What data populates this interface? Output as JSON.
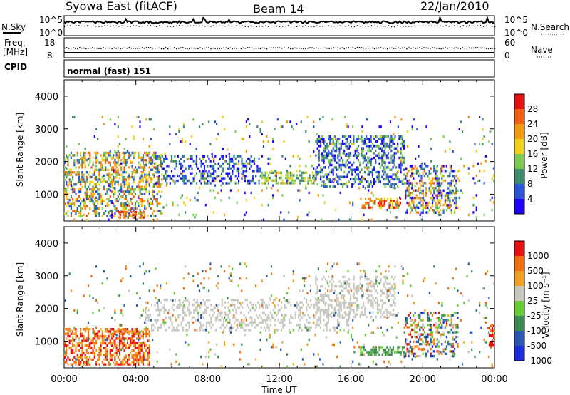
{
  "header": {
    "station": "Syowa East (fitACF)",
    "beam": "Beam 14",
    "date": "22/Jan/2010"
  },
  "status_panels": {
    "nsky_label": "N.Sky",
    "nsky_ticks": [
      "10^5",
      "10^0"
    ],
    "nsearch_label": "N.Search",
    "nsearch_ticks": [
      "10^5",
      "10^0"
    ],
    "freq_label_1": "Freq.",
    "freq_label_2": "[MHz]",
    "freq_ticks": [
      "18",
      "8"
    ],
    "nave_label": "Nave",
    "nave_ticks": [
      "60",
      "0"
    ],
    "cpid_label": "CPID",
    "mode_text": "normal (fast) 151"
  },
  "chart_data": [
    {
      "type": "heatmap",
      "name": "power",
      "ylabel": "Slant Range [km]",
      "yticks": [
        "4000",
        "3000",
        "2000",
        "1000"
      ],
      "ylim": [
        180,
        4500
      ],
      "xlim": [
        0,
        24
      ],
      "colorbar_label": "Power [dB]",
      "colorbar_ticks": [
        "28",
        "24",
        "20",
        "16",
        "12",
        "8",
        "4"
      ],
      "colors": [
        "#1e00ff",
        "#2a56d8",
        "#3c8c6e",
        "#7ccc52",
        "#f0d21a",
        "#f49a10",
        "#f06010",
        "#e81010"
      ],
      "scatter_regions": [
        {
          "t0": 0.0,
          "t1": 5.5,
          "r0": 300,
          "r1": 2300,
          "density": 0.45,
          "cmin": 1,
          "cmax": 6
        },
        {
          "t0": 3.0,
          "t1": 4.5,
          "r0": 250,
          "r1": 500,
          "density": 0.6,
          "cmin": 5,
          "cmax": 7
        },
        {
          "t0": 5.0,
          "t1": 11.0,
          "r0": 1300,
          "r1": 2200,
          "density": 0.35,
          "cmin": 0,
          "cmax": 2
        },
        {
          "t0": 11.0,
          "t1": 14.0,
          "r0": 1300,
          "r1": 1700,
          "density": 0.5,
          "cmin": 2,
          "cmax": 4
        },
        {
          "t0": 14.0,
          "t1": 19.0,
          "r0": 1200,
          "r1": 2800,
          "density": 0.45,
          "cmin": 0,
          "cmax": 3
        },
        {
          "t0": 16.5,
          "t1": 18.8,
          "r0": 550,
          "r1": 900,
          "density": 0.55,
          "cmin": 4,
          "cmax": 7
        },
        {
          "t0": 19.0,
          "t1": 22.0,
          "r0": 400,
          "r1": 1900,
          "density": 0.4,
          "cmin": 0,
          "cmax": 6
        },
        {
          "t0": 0.0,
          "t1": 24.0,
          "r0": 180,
          "r1": 3400,
          "density": 0.04,
          "cmin": 0,
          "cmax": 5
        }
      ]
    },
    {
      "type": "heatmap",
      "name": "velocity",
      "ylabel": "Slant Range [km]",
      "yticks": [
        "4000",
        "3000",
        "2000",
        "1000"
      ],
      "ylim": [
        180,
        4500
      ],
      "xlim": [
        0,
        24
      ],
      "xlabel": "Time UT",
      "xticks": [
        "00:00",
        "04:00",
        "08:00",
        "12:00",
        "16:00",
        "20:00",
        "00:00"
      ],
      "colorbar_label": "Velocity [m s⁻¹]",
      "colorbar_ticks": [
        "1000",
        "500",
        "100",
        "25",
        "-25",
        "-100",
        "-500",
        "-1000"
      ],
      "colors": [
        "#1a2ee0",
        "#2a5ab0",
        "#3c8c50",
        "#66cc33",
        "#c8c8c0",
        "#f0a020",
        "#f07010",
        "#e81010"
      ],
      "scatter_regions": [
        {
          "t0": 0.0,
          "t1": 4.8,
          "r0": 250,
          "r1": 1400,
          "density": 0.55,
          "cmin": 5,
          "cmax": 7
        },
        {
          "t0": 4.5,
          "t1": 16.0,
          "r0": 1300,
          "r1": 2300,
          "density": 0.3,
          "cmin": 4,
          "cmax": 4
        },
        {
          "t0": 14.0,
          "t1": 18.5,
          "r0": 1700,
          "r1": 3000,
          "density": 0.35,
          "cmin": 4,
          "cmax": 4
        },
        {
          "t0": 16.5,
          "t1": 19.0,
          "r0": 550,
          "r1": 850,
          "density": 0.6,
          "cmin": 2,
          "cmax": 3
        },
        {
          "t0": 19.0,
          "t1": 22.0,
          "r0": 500,
          "r1": 1900,
          "density": 0.4,
          "cmin": 0,
          "cmax": 7
        },
        {
          "t0": 23.6,
          "t1": 24.0,
          "r0": 700,
          "r1": 1500,
          "density": 0.5,
          "cmin": 6,
          "cmax": 7
        },
        {
          "t0": 0.0,
          "t1": 24.0,
          "r0": 180,
          "r1": 3400,
          "density": 0.04,
          "cmin": 1,
          "cmax": 6
        }
      ]
    }
  ]
}
